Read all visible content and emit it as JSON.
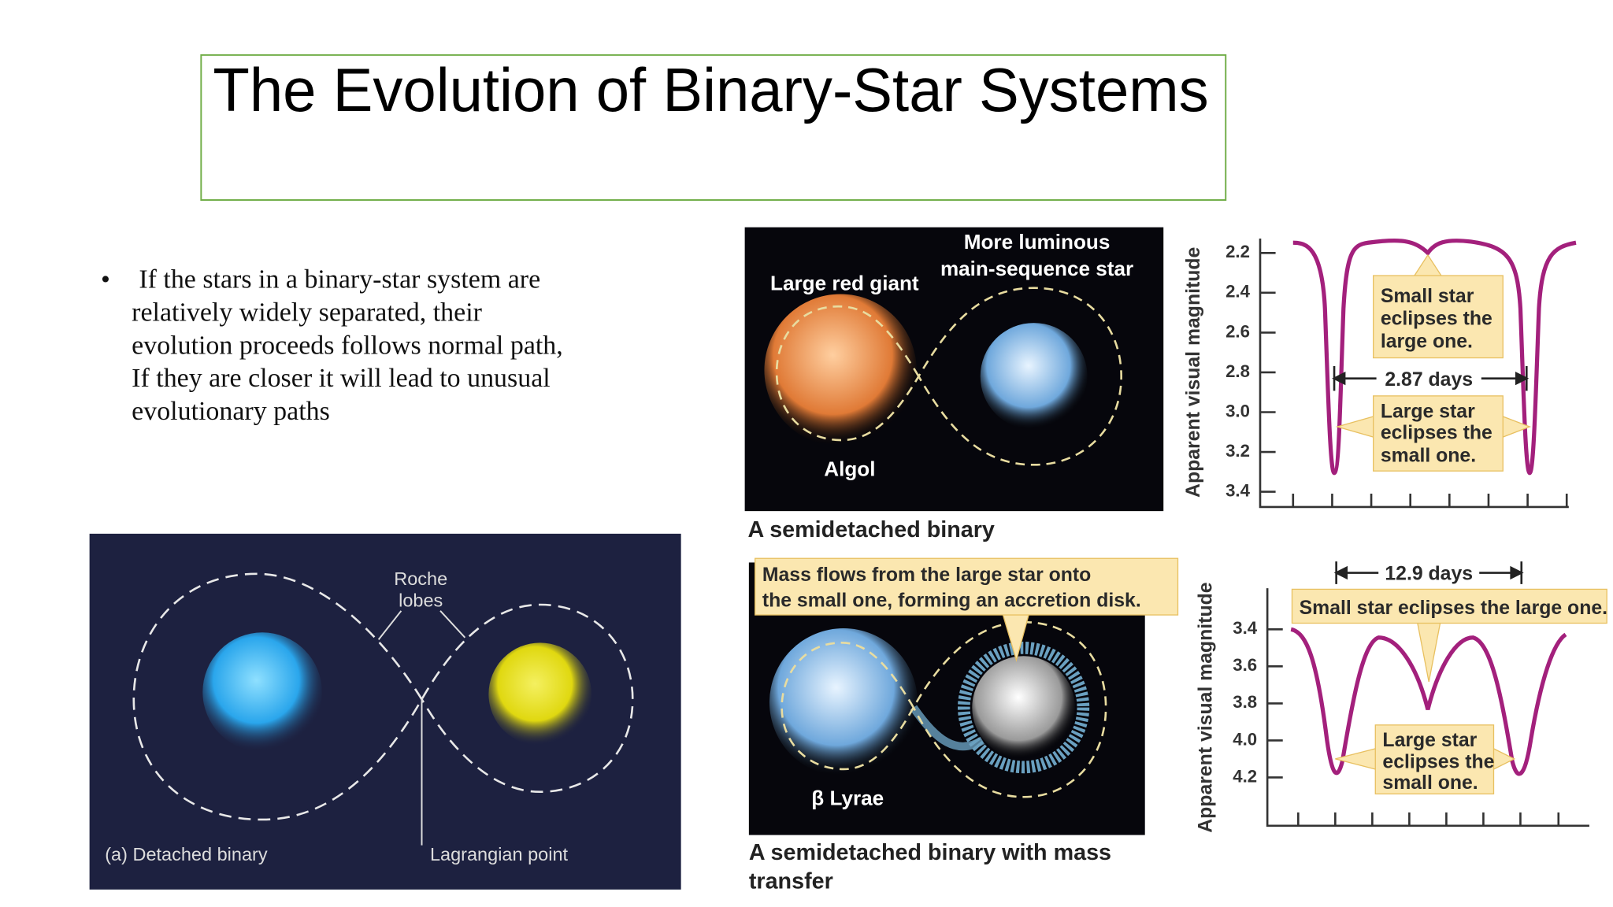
{
  "title": "The Evolution of Binary-Star Systems",
  "bullet": {
    "lines": [
      "If the stars in a binary-star system are",
      "relatively widely separated, their",
      "evolution proceeds follows normal path,",
      "If they are closer it will lead to unusual",
      "evolutionary paths"
    ]
  },
  "detached_figure": {
    "roche_label": [
      "Roche",
      "lobes"
    ],
    "caption": "(a) Detached binary",
    "lagrangian_label": "Lagrangian point"
  },
  "algol_figure": {
    "companion_label": [
      "More luminous",
      "main-sequence star"
    ],
    "giant_label": "Large red giant",
    "system_label": "Algol",
    "caption": "A semidetached binary"
  },
  "algol_light_curve": {
    "y_label": "Apparent visual magnitude",
    "yticks": [
      "2.2",
      "2.4",
      "2.6",
      "2.8",
      "3.0",
      "3.2",
      "3.4"
    ],
    "primary_note": [
      "Small star",
      "eclipses the",
      "large one."
    ],
    "period": "2.87 days",
    "secondary_note": [
      "Large star",
      "eclipses the",
      "small one."
    ]
  },
  "lyrae_figure": {
    "flow_note": [
      "Mass flows from the large star onto",
      "the small one, forming an accretion disk."
    ],
    "system_label": "β Lyrae",
    "caption": [
      "A semidetached binary with mass",
      "transfer"
    ]
  },
  "lyrae_light_curve": {
    "y_label": "Apparent visual magnitude",
    "yticks": [
      "3.4",
      "3.6",
      "3.8",
      "4.0",
      "4.2"
    ],
    "period": "12.9 days",
    "primary_note": "Small star eclipses the large one.",
    "secondary_note": [
      "Large star",
      "eclipses the",
      "small one."
    ]
  }
}
